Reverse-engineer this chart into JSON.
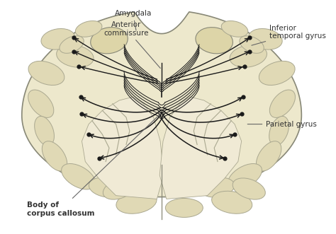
{
  "bg_color": "#ffffff",
  "brain_fill": "#ede8cc",
  "brain_fill2": "#e0d9b5",
  "brain_stroke": "#888877",
  "gyrus_fill": "#ddd8b8",
  "sulcus_color": "#aaa890",
  "fiber_color": "#1a1a1a",
  "label_color": "#333333",
  "figsize": [
    4.74,
    3.31
  ],
  "dpi": 100,
  "labels": {
    "body_of_corpus_callosum": "Body of\ncorpus callosum",
    "parietal_gyrus": "Parietal gyrus",
    "anterior_commissure": "Anterior\ncommissure",
    "amygdala": "Amygdala",
    "inferior_temporal_gyrus": "Inferior\ntemporal gyrus"
  }
}
